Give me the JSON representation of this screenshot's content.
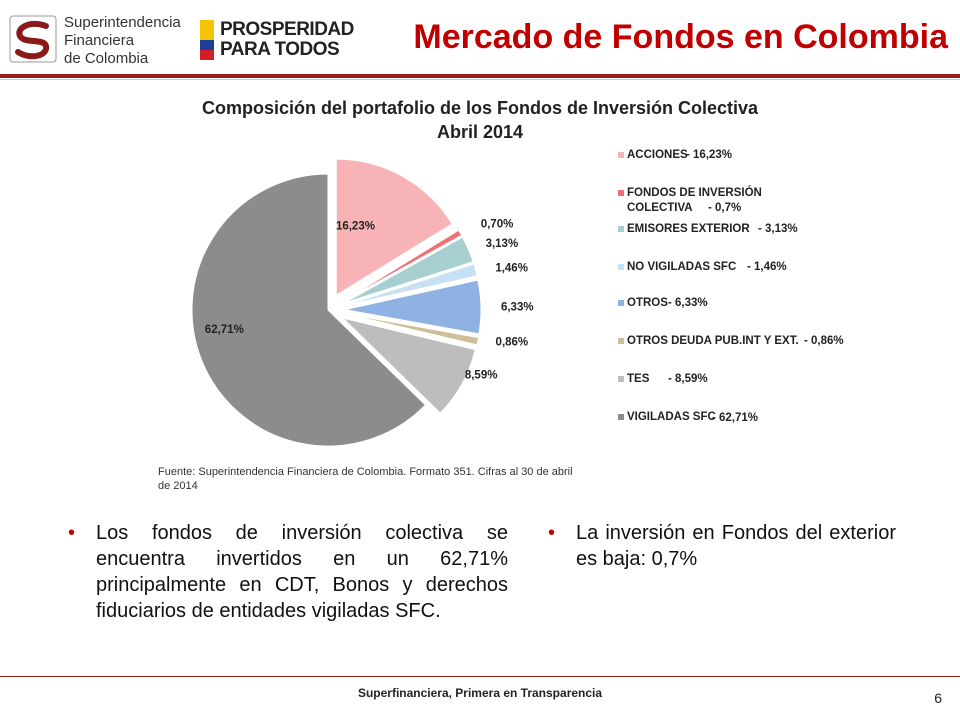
{
  "header": {
    "sfc_logo_lines": [
      "Superintendencia",
      "Financiera",
      "de Colombia"
    ],
    "prosperidad_lines": [
      "PROSPERIDAD",
      "PARA TODOS"
    ],
    "title": "Mercado de Fondos en Colombia"
  },
  "chart_data": {
    "type": "pie",
    "title": "Composición del portafolio de los Fondos de Inversión Colectiva",
    "subtitle": "Abril 2014",
    "slices": [
      {
        "name": "ACCIONES",
        "value": 16.23,
        "label": "16,23%",
        "legend_pct": "- 16,23%",
        "color": "#f8b3b6",
        "exploded": true
      },
      {
        "name": "FONDOS DE INVERSIÓN COLECTIVA",
        "value": 0.7,
        "label": "0,70%",
        "legend_pct": "- 0,7%",
        "color": "#f07077",
        "exploded": true
      },
      {
        "name": "EMISORES EXTERIOR",
        "value": 3.13,
        "label": "3,13%",
        "legend_pct": "- 3,13%",
        "color": "#a7cfcf",
        "exploded": true
      },
      {
        "name": "NO VIGILADAS SFC",
        "value": 1.46,
        "label": "1,46%",
        "legend_pct": "- 1,46%",
        "color": "#c8e0f4",
        "exploded": true
      },
      {
        "name": "OTROS",
        "value": 6.33,
        "label": "6,33%",
        "legend_pct": "- 6,33%",
        "color": "#8db2e3",
        "exploded": true
      },
      {
        "name": "OTROS DEUDA PUB.INT Y EXT.",
        "value": 0.86,
        "label": "0,86%",
        "legend_pct": "- 0,86%",
        "color": "#cdbf97",
        "exploded": true
      },
      {
        "name": "TES",
        "value": 8.59,
        "label": "8,59%",
        "legend_pct": "- 8,59%",
        "color": "#bdbdbd",
        "exploded": true
      },
      {
        "name": "VIGILADAS SFC",
        "value": 62.71,
        "label": "62,71%",
        "legend_pct": "- 62,71%",
        "color": "#8c8c8c",
        "exploded": false
      }
    ],
    "legend_placement": "right"
  },
  "source_note": "Fuente: Superintendencia Financiera de Colombia. Formato 351. Cifras al 30 de abril de 2014",
  "bullets_left": [
    "Los fondos de inversión colectiva se encuentra invertidos en un 62,71% principalmente en CDT, Bonos y derechos fiduciarios de entidades vigiladas SFC."
  ],
  "bullets_right": [
    "La inversión en Fondos del exterior es baja: 0,7%"
  ],
  "bullet_symbol": "•",
  "footer": {
    "text": "Superfinanciera, Primera en Transparencia",
    "page_number": "6"
  },
  "colors": {
    "accent": "#c00000",
    "rule": "#9b1b1b"
  }
}
